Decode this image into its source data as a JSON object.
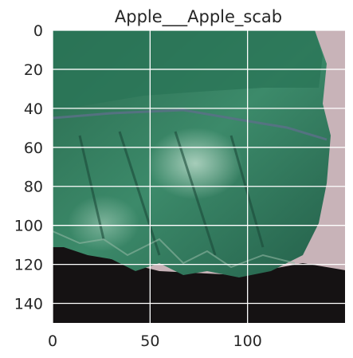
{
  "figure": {
    "title": "Apple___Apple_scab",
    "image_subject": "green apple leaf with scab on dark background",
    "xticks": [
      {
        "value": 0,
        "label": "0"
      },
      {
        "value": 50,
        "label": "50"
      },
      {
        "value": 100,
        "label": "100"
      }
    ],
    "yticks": [
      {
        "value": 0,
        "label": "0"
      },
      {
        "value": 20,
        "label": "20"
      },
      {
        "value": 40,
        "label": "40"
      },
      {
        "value": 60,
        "label": "60"
      },
      {
        "value": 80,
        "label": "80"
      },
      {
        "value": 100,
        "label": "100"
      },
      {
        "value": 120,
        "label": "120"
      },
      {
        "value": 140,
        "label": "140"
      }
    ],
    "xlim": [
      0,
      150
    ],
    "ylim": [
      150,
      0
    ],
    "grid": true,
    "colors": {
      "leaf": "#2f7a5c",
      "leaf_dark": "#1d4f3d",
      "leaf_light": "#5fa88a",
      "background_pink": "#c8b3b8",
      "background_dark": "#151213",
      "text": "#262626"
    }
  }
}
